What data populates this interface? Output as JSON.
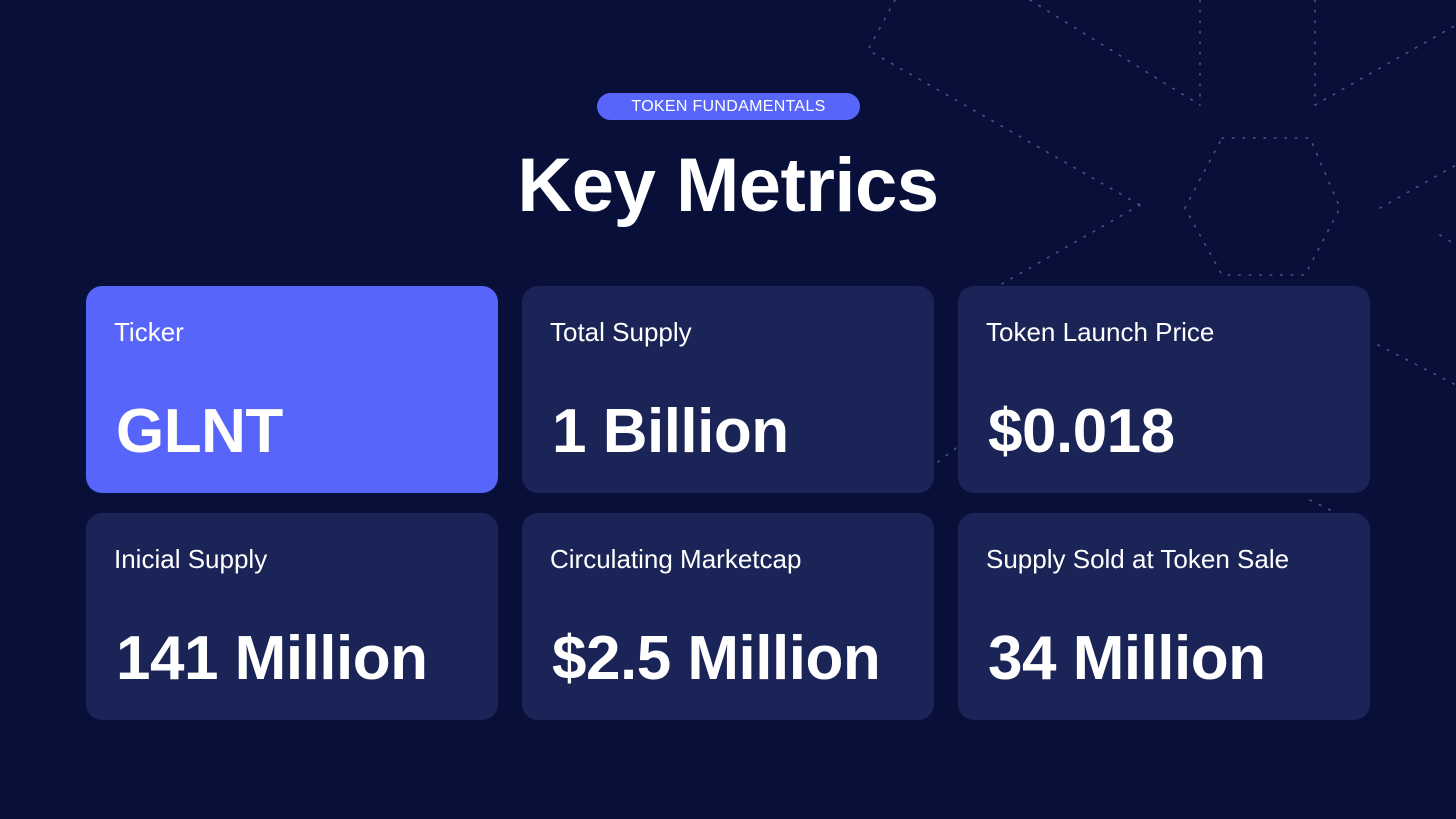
{
  "badge": "TOKEN FUNDAMENTALS",
  "title": "Key Metrics",
  "colors": {
    "background": "#08103a",
    "card": "#1b2456",
    "accent": "#5865fb",
    "text": "#ffffff"
  },
  "metrics": [
    {
      "label": "Ticker",
      "value": "GLNT",
      "highlighted": true
    },
    {
      "label": "Total Supply",
      "value": "1 Billion",
      "highlighted": false
    },
    {
      "label": "Token Launch Price",
      "value": "$0.018",
      "highlighted": false
    },
    {
      "label": "Inicial Supply",
      "value": "141 Million",
      "highlighted": false
    },
    {
      "label": "Circulating Marketcap",
      "value": "$2.5 Million",
      "highlighted": false
    },
    {
      "label": "Supply Sold at Token Sale",
      "value": "34 Million",
      "highlighted": false
    }
  ]
}
